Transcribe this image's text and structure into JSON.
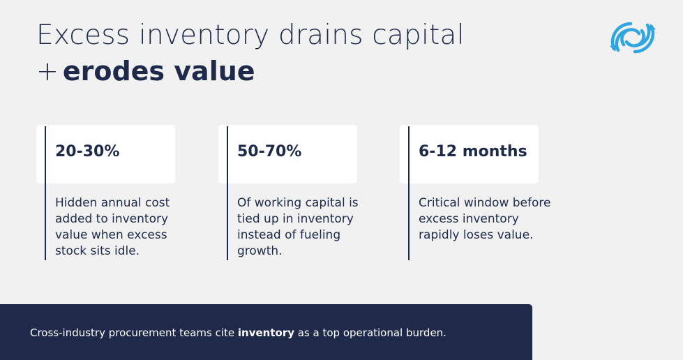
{
  "header": {
    "title_line1": "Excess inventory drains capital",
    "title_plus": "+",
    "title_bold": "erodes value"
  },
  "logo": {
    "icon": "circular-arrows-icon",
    "color": "#2fa6e0"
  },
  "stats": [
    {
      "value": "20-30%",
      "description": "Hidden annual cost added to inventory value when excess stock sits idle."
    },
    {
      "value": "50-70%",
      "description": "Of working capital is tied up in inventory instead of fueling growth."
    },
    {
      "value": "6-12 months",
      "description": "Critical window before excess inventory rapidly loses value."
    }
  ],
  "banner": {
    "text_before": "Cross-industry procurement teams cite ",
    "text_bold": "inventory",
    "text_after": " as a top operational burden."
  },
  "colors": {
    "navy": "#1f2a4a",
    "background": "#f1f1f2",
    "card": "#ffffff",
    "accent": "#2fa6e0"
  }
}
